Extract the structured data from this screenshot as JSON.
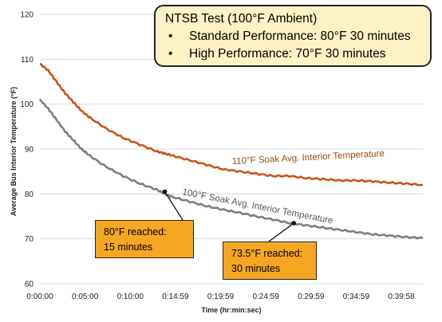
{
  "chart_data": {
    "type": "line",
    "xlabel": "Time (hr:min:sec)",
    "ylabel": "Average Bus Interior Temperature (°F)",
    "ylim": [
      60,
      120
    ],
    "xlim": [
      0,
      46
    ],
    "yticks": [
      60,
      70,
      80,
      90,
      100,
      110,
      120
    ],
    "xticks": [
      "0:00:00",
      "0:05:00",
      "0:10:00",
      "0:14:59",
      "0:19:59",
      "0:24:59",
      "0:29:59",
      "0:34:59",
      "0:39:58"
    ],
    "grid": "horizontal",
    "series": [
      {
        "name": "110°F Soak Avg. Interior Temperature",
        "color": "#c9541a",
        "x": [
          0,
          1,
          2,
          3,
          4,
          5,
          6,
          8,
          10,
          12,
          14,
          15,
          16,
          18,
          20,
          22,
          24,
          26,
          28,
          30,
          32,
          34,
          36,
          38,
          40,
          42,
          44,
          46
        ],
        "y": [
          109,
          107.5,
          105,
          102.5,
          100.5,
          98.5,
          97,
          94.5,
          92.5,
          91,
          89.5,
          89,
          88.5,
          87.5,
          86.5,
          85.5,
          85,
          84.5,
          84,
          84,
          83.5,
          83.3,
          83,
          83,
          82.8,
          82.5,
          82.3,
          82
        ]
      },
      {
        "name": "100°F Soak Avg. Interior Temperature",
        "color": "#7f7f7f",
        "x": [
          0,
          1,
          2,
          3,
          4,
          5,
          6,
          8,
          10,
          12,
          14,
          15,
          16,
          18,
          20,
          22,
          24,
          26,
          28,
          30,
          32,
          34,
          36,
          38,
          40,
          42,
          44,
          46
        ],
        "y": [
          101,
          99,
          96.5,
          94,
          92,
          90,
          88.5,
          86,
          84,
          82.3,
          81,
          80,
          79.3,
          78.3,
          77.3,
          76.5,
          75.8,
          75,
          74.3,
          73.5,
          73,
          72.5,
          72,
          71.5,
          71,
          70.7,
          70.4,
          70.2
        ]
      }
    ],
    "series_labels": [
      {
        "text": "110°F Soak Avg. Interior Temperature",
        "color": "#9a4a0c"
      },
      {
        "text": "100°F Soak Avg. Interior Temperature",
        "color": "#555555"
      }
    ],
    "annotations": [
      {
        "x": 15,
        "y": 80.5,
        "lines": [
          "80°F reached:",
          "15 minutes"
        ]
      },
      {
        "x": 30.5,
        "y": 73.5,
        "lines": [
          "73.5°F reached:",
          "30 minutes"
        ]
      }
    ]
  },
  "info_box": {
    "title": "NTSB Test (100°F Ambient)",
    "items": [
      "Standard Performance: 80°F 30 minutes",
      "High Performance: 70°F 30 minutes"
    ],
    "bullet": "•"
  }
}
